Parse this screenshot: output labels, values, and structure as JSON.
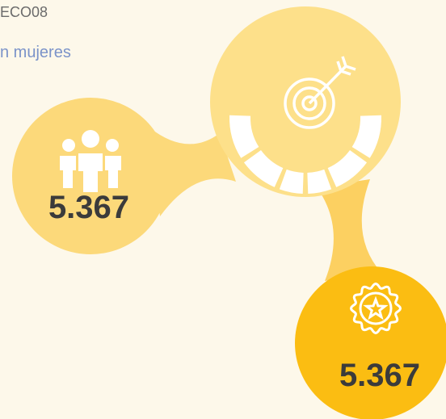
{
  "header": {
    "code": "ECO08",
    "subtitle": "n mujeres"
  },
  "stats": [
    {
      "value": "5.367"
    },
    {
      "value": "5.367"
    }
  ]
}
